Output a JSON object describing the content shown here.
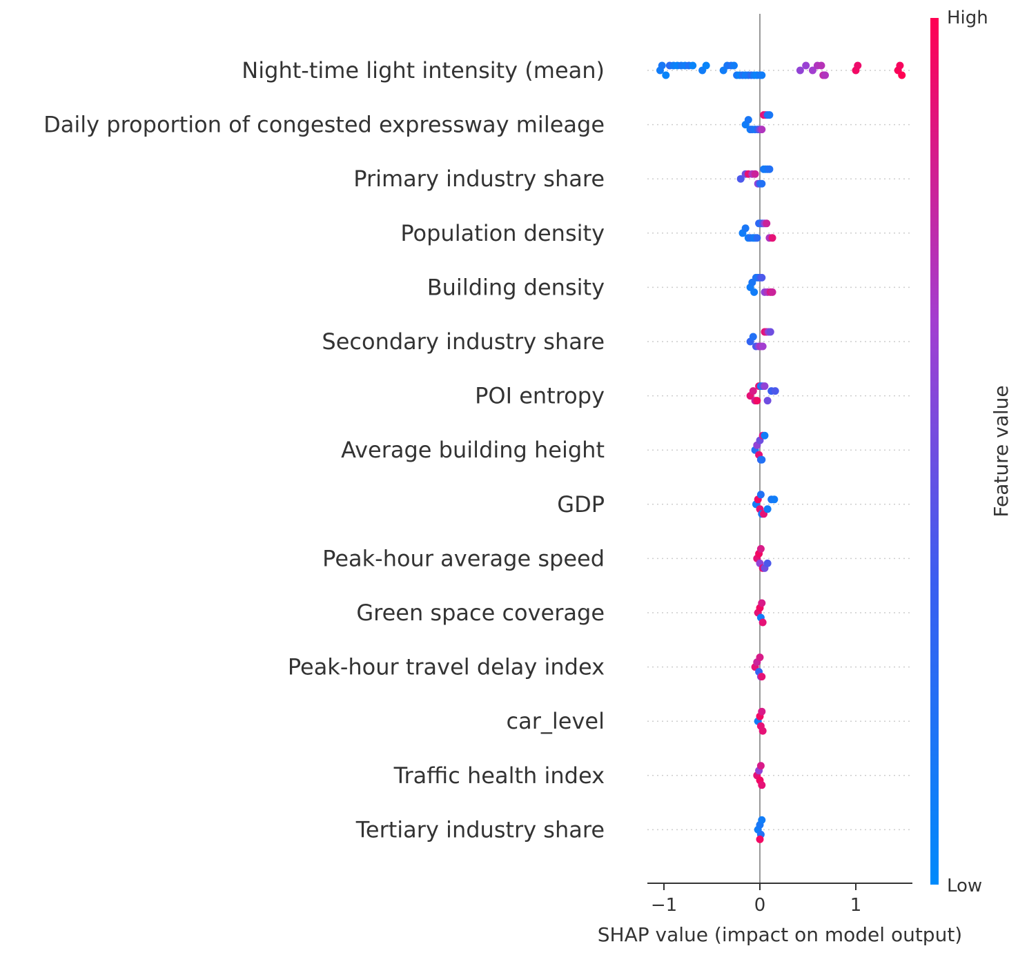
{
  "chart_data": {
    "type": "scatter",
    "subtype": "shap-beeswarm",
    "xlabel": "SHAP value (impact on model output)",
    "xlim": [
      -1.2,
      1.6
    ],
    "xticks": [
      -1,
      0,
      1
    ],
    "xtick_labels": [
      "−1",
      "0",
      "1"
    ],
    "colorbar": {
      "label": "Feature value",
      "high": "High",
      "low": "Low",
      "color_low": "#008afb",
      "color_high": "#ff0052"
    },
    "features": [
      {
        "name": "Night-time light intensity (mean)",
        "points": [
          [
            -1.04,
            0.1
          ],
          [
            -1.02,
            0.15
          ],
          [
            -0.98,
            0.05
          ],
          [
            -0.94,
            0.25
          ],
          [
            -0.9,
            0.1
          ],
          [
            -0.86,
            0.05
          ],
          [
            -0.82,
            0.15
          ],
          [
            -0.78,
            0.1
          ],
          [
            -0.74,
            0.2
          ],
          [
            -0.7,
            0.05
          ],
          [
            -0.6,
            0.1
          ],
          [
            -0.56,
            0.05
          ],
          [
            -0.38,
            0.1
          ],
          [
            -0.34,
            0.15
          ],
          [
            -0.3,
            0.2
          ],
          [
            -0.27,
            0.1
          ],
          [
            -0.24,
            0.15
          ],
          [
            -0.21,
            0.05
          ],
          [
            -0.18,
            0.2
          ],
          [
            -0.15,
            0.1
          ],
          [
            -0.12,
            0.15
          ],
          [
            -0.09,
            0.25
          ],
          [
            -0.06,
            0.1
          ],
          [
            -0.03,
            0.05
          ],
          [
            0.0,
            0.15
          ],
          [
            0.02,
            0.1
          ],
          [
            0.42,
            0.6
          ],
          [
            0.48,
            0.62
          ],
          [
            0.55,
            0.65
          ],
          [
            0.6,
            0.7
          ],
          [
            0.64,
            0.72
          ],
          [
            0.66,
            0.75
          ],
          [
            0.68,
            0.7
          ],
          [
            1.0,
            0.95
          ],
          [
            1.02,
            0.93
          ],
          [
            1.44,
            0.98
          ],
          [
            1.46,
            0.97
          ],
          [
            1.48,
            1.0
          ]
        ]
      },
      {
        "name": "Daily proportion of congested expressway mileage",
        "points": [
          [
            -0.15,
            0.1
          ],
          [
            -0.12,
            0.15
          ],
          [
            -0.1,
            0.1
          ],
          [
            -0.08,
            0.2
          ],
          [
            -0.05,
            0.15
          ],
          [
            -0.02,
            0.3
          ],
          [
            0.0,
            0.5
          ],
          [
            0.02,
            0.7
          ],
          [
            0.04,
            0.9
          ],
          [
            0.06,
            0.85
          ],
          [
            0.08,
            0.2
          ],
          [
            0.1,
            0.15
          ]
        ]
      },
      {
        "name": "Primary industry share",
        "points": [
          [
            -0.2,
            0.4
          ],
          [
            -0.15,
            0.5
          ],
          [
            -0.12,
            0.9
          ],
          [
            -0.08,
            0.7
          ],
          [
            -0.05,
            0.8
          ],
          [
            -0.02,
            0.6
          ],
          [
            0.0,
            0.3
          ],
          [
            0.02,
            0.2
          ],
          [
            0.04,
            0.15
          ],
          [
            0.06,
            0.1
          ],
          [
            0.08,
            0.15
          ],
          [
            0.1,
            0.2
          ]
        ]
      },
      {
        "name": "Population density",
        "points": [
          [
            -0.18,
            0.1
          ],
          [
            -0.15,
            0.15
          ],
          [
            -0.12,
            0.1
          ],
          [
            -0.1,
            0.2
          ],
          [
            -0.07,
            0.15
          ],
          [
            -0.05,
            0.1
          ],
          [
            -0.03,
            0.25
          ],
          [
            -0.01,
            0.3
          ],
          [
            0.01,
            0.2
          ],
          [
            0.03,
            0.4
          ],
          [
            0.05,
            0.6
          ],
          [
            0.07,
            0.8
          ],
          [
            0.1,
            0.7
          ],
          [
            0.13,
            0.9
          ]
        ]
      },
      {
        "name": "Building density",
        "points": [
          [
            -0.1,
            0.1
          ],
          [
            -0.08,
            0.15
          ],
          [
            -0.06,
            0.1
          ],
          [
            -0.04,
            0.2
          ],
          [
            -0.02,
            0.15
          ],
          [
            0.0,
            0.3
          ],
          [
            0.02,
            0.4
          ],
          [
            0.05,
            0.6
          ],
          [
            0.08,
            0.7
          ],
          [
            0.11,
            0.85
          ],
          [
            0.13,
            0.8
          ]
        ]
      },
      {
        "name": "Secondary industry share",
        "points": [
          [
            -0.1,
            0.3
          ],
          [
            -0.07,
            0.2
          ],
          [
            -0.04,
            0.4
          ],
          [
            -0.01,
            0.6
          ],
          [
            0.01,
            0.7
          ],
          [
            0.03,
            0.65
          ],
          [
            0.05,
            0.9
          ],
          [
            0.07,
            0.85
          ],
          [
            0.09,
            0.6
          ],
          [
            0.11,
            0.5
          ]
        ]
      },
      {
        "name": "POI entropy",
        "points": [
          [
            -0.1,
            0.9
          ],
          [
            -0.07,
            0.85
          ],
          [
            -0.05,
            0.8
          ],
          [
            -0.03,
            0.95
          ],
          [
            -0.01,
            0.9
          ],
          [
            0.01,
            0.1
          ],
          [
            0.03,
            0.4
          ],
          [
            0.05,
            0.6
          ],
          [
            0.08,
            0.5
          ],
          [
            0.12,
            0.35
          ],
          [
            0.16,
            0.4
          ]
        ]
      },
      {
        "name": "Average building height",
        "points": [
          [
            -0.05,
            0.2
          ],
          [
            -0.03,
            0.6
          ],
          [
            -0.01,
            0.9
          ],
          [
            0.0,
            0.5
          ],
          [
            0.01,
            0.3
          ],
          [
            0.02,
            0.2
          ],
          [
            0.03,
            0.85
          ],
          [
            0.05,
            0.1
          ]
        ]
      },
      {
        "name": "GDP",
        "points": [
          [
            -0.04,
            0.1
          ],
          [
            -0.02,
            0.95
          ],
          [
            0.0,
            0.9
          ],
          [
            0.01,
            0.2
          ],
          [
            0.02,
            0.15
          ],
          [
            0.04,
            0.9
          ],
          [
            0.08,
            0.1
          ],
          [
            0.12,
            0.15
          ],
          [
            0.15,
            0.1
          ]
        ]
      },
      {
        "name": "Peak-hour average speed",
        "points": [
          [
            -0.03,
            0.9
          ],
          [
            -0.01,
            0.95
          ],
          [
            0.0,
            0.6
          ],
          [
            0.01,
            0.85
          ],
          [
            0.03,
            0.9
          ],
          [
            0.05,
            0.5
          ],
          [
            0.08,
            0.4
          ]
        ]
      },
      {
        "name": "Green space coverage",
        "points": [
          [
            -0.02,
            0.9
          ],
          [
            0.0,
            0.95
          ],
          [
            0.01,
            0.1
          ],
          [
            0.02,
            0.85
          ],
          [
            0.03,
            0.9
          ]
        ]
      },
      {
        "name": "Peak-hour travel delay index",
        "points": [
          [
            -0.05,
            0.9
          ],
          [
            -0.03,
            0.8
          ],
          [
            -0.01,
            0.3
          ],
          [
            0.0,
            0.85
          ],
          [
            0.01,
            0.6
          ],
          [
            0.02,
            0.9
          ]
        ]
      },
      {
        "name": "car_level",
        "points": [
          [
            -0.02,
            0.1
          ],
          [
            0.0,
            0.95
          ],
          [
            0.01,
            0.9
          ],
          [
            0.02,
            0.85
          ],
          [
            0.03,
            0.9
          ]
        ]
      },
      {
        "name": "Traffic health index",
        "points": [
          [
            -0.03,
            0.9
          ],
          [
            -0.01,
            0.6
          ],
          [
            0.0,
            0.95
          ],
          [
            0.01,
            0.85
          ],
          [
            0.02,
            0.9
          ]
        ]
      },
      {
        "name": "Tertiary industry share",
        "points": [
          [
            -0.02,
            0.1
          ],
          [
            0.0,
            0.15
          ],
          [
            0.01,
            0.2
          ],
          [
            0.02,
            0.1
          ],
          [
            0.0,
            0.95
          ]
        ]
      }
    ]
  }
}
